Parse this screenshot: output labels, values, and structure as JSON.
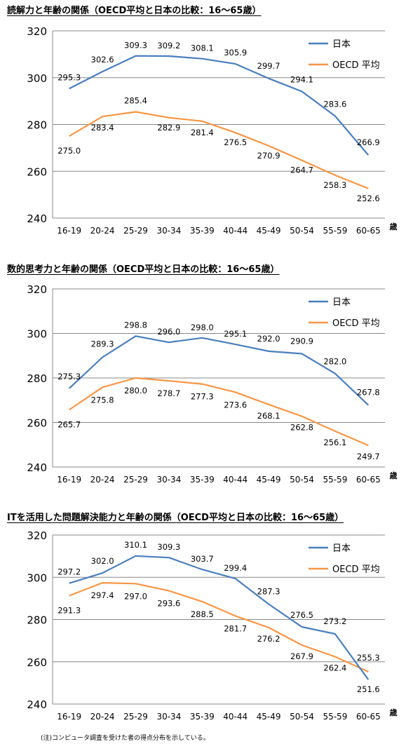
{
  "chart_data": [
    {
      "type": "line",
      "title": "読解力と年齢の関係（OECD平均と日本の比較：16～65歳）",
      "categories": [
        "16-19",
        "20-24",
        "25-29",
        "30-34",
        "35-39",
        "40-44",
        "45-49",
        "50-54",
        "55-59",
        "60-65"
      ],
      "xunit": "歳",
      "ylim": [
        240,
        320
      ],
      "yticks": [
        240,
        260,
        280,
        300,
        320
      ],
      "grid": true,
      "legend": "top-right",
      "series": [
        {
          "name": "日本",
          "color": "#4a7ebb",
          "values": [
            295.3,
            302.6,
            309.3,
            309.2,
            308.1,
            305.9,
            299.7,
            294.1,
            283.6,
            266.9
          ]
        },
        {
          "name": "OECD 平均",
          "color": "#f79646",
          "values": [
            275.0,
            283.4,
            285.4,
            282.9,
            281.4,
            276.5,
            270.9,
            264.7,
            258.3,
            252.6
          ]
        }
      ]
    },
    {
      "type": "line",
      "title": "数的思考力と年齢の関係（OECD平均と日本の比較：16～65歳）",
      "categories": [
        "16-19",
        "20-24",
        "25-29",
        "30-34",
        "35-39",
        "40-44",
        "45-49",
        "50-54",
        "55-59",
        "60-65"
      ],
      "xunit": "歳",
      "ylim": [
        240,
        320
      ],
      "yticks": [
        240,
        260,
        280,
        300,
        320
      ],
      "grid": true,
      "legend": "top-right",
      "series": [
        {
          "name": "日本",
          "color": "#4a7ebb",
          "values": [
            275.3,
            289.3,
            298.8,
            296.0,
            298.0,
            295.1,
            292.0,
            290.9,
            282.0,
            267.8
          ]
        },
        {
          "name": "OECD 平均",
          "color": "#f79646",
          "values": [
            265.7,
            275.8,
            280.0,
            278.7,
            277.3,
            273.6,
            268.1,
            262.8,
            256.1,
            249.7
          ]
        }
      ]
    },
    {
      "type": "line",
      "title": "ITを活用した問題解決能力と年齢の関係（OECD平均と日本の比較：16～65歳）",
      "categories": [
        "16-19",
        "20-24",
        "25-29",
        "30-34",
        "35-39",
        "40-44",
        "45-49",
        "50-54",
        "55-59",
        "60-65"
      ],
      "xunit": "歳",
      "ylim": [
        240,
        320
      ],
      "yticks": [
        240,
        260,
        280,
        300,
        320
      ],
      "grid": true,
      "legend": "top-right",
      "series": [
        {
          "name": "日本",
          "color": "#4a7ebb",
          "values": [
            297.2,
            302.0,
            310.1,
            309.3,
            303.7,
            299.4,
            287.3,
            276.5,
            273.2,
            251.6
          ]
        },
        {
          "name": "OECD 平均",
          "color": "#f79646",
          "values": [
            291.3,
            297.4,
            297.0,
            293.6,
            288.5,
            281.7,
            276.2,
            267.9,
            262.4,
            255.3
          ]
        }
      ]
    }
  ],
  "note": "(注)コンピュータ調査を受けた者の得点分布を示している。"
}
